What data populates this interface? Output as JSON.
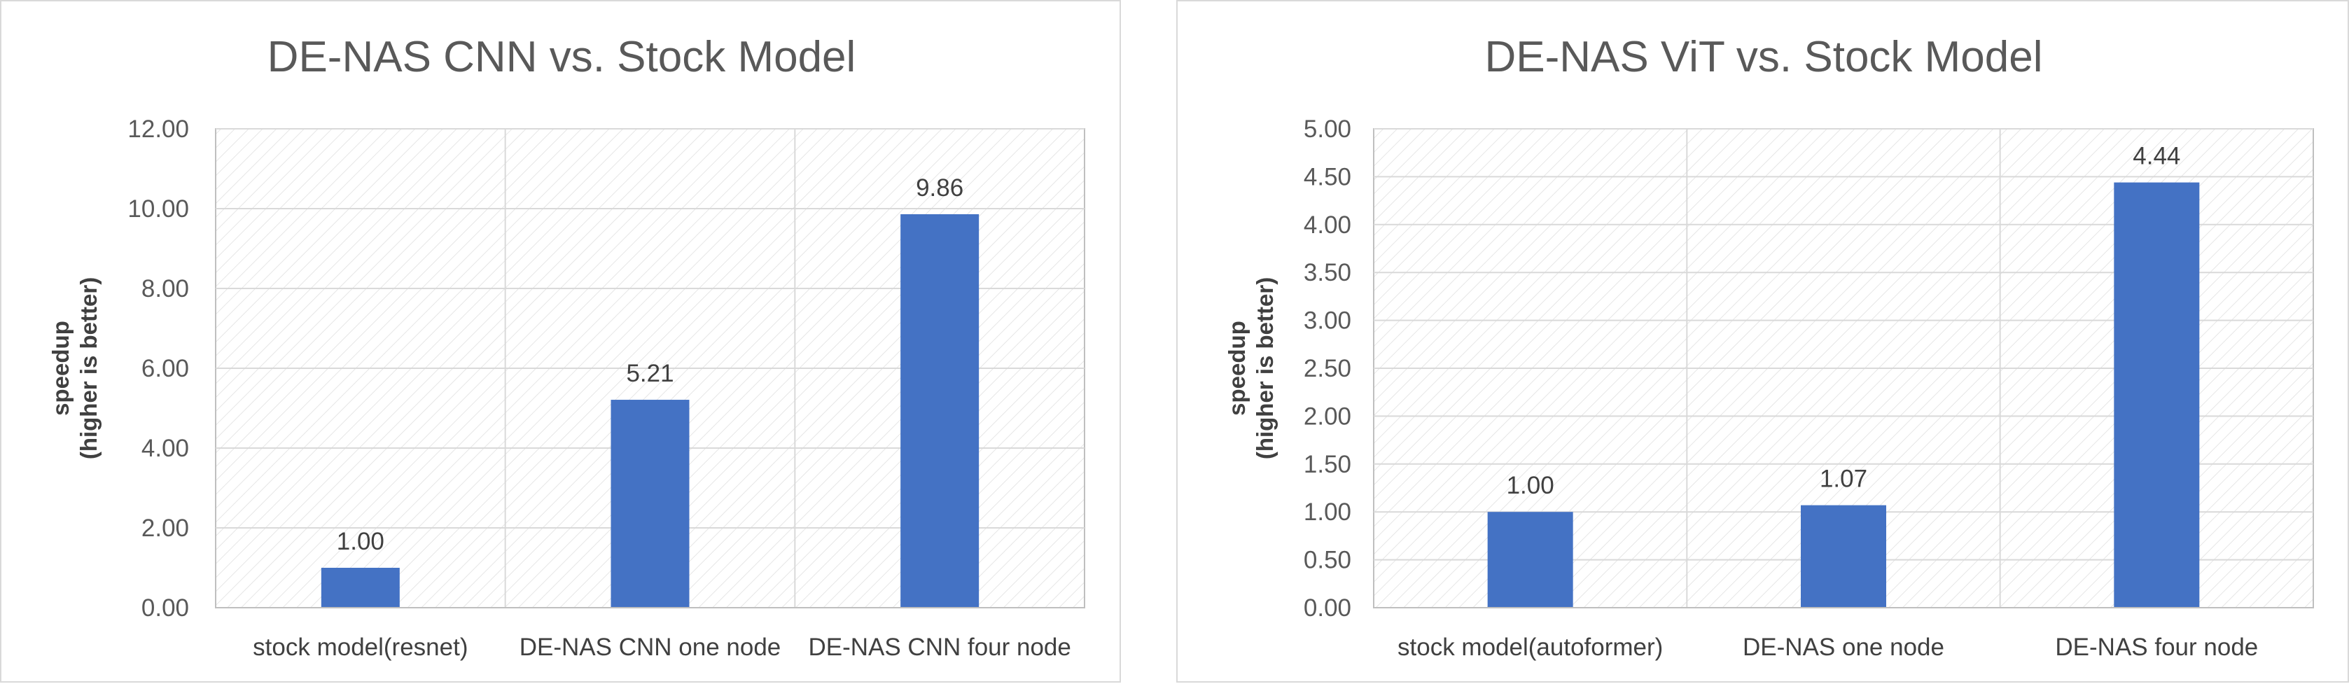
{
  "chart_data": [
    {
      "type": "bar",
      "title": "DE-NAS CNN vs. Stock Model",
      "xlabel": "",
      "ylabel": [
        "speedup",
        "(higher is better)"
      ],
      "categories": [
        "stock model(resnet)",
        "DE-NAS CNN one node",
        "DE-NAS CNN four node"
      ],
      "series": [
        {
          "values": [
            1.0,
            5.21,
            9.86
          ],
          "color": "#4472C4"
        }
      ],
      "data_labels": [
        "1.00",
        "5.21",
        "9.86"
      ],
      "ylim": [
        0,
        12
      ],
      "yticks": [
        "0.00",
        "2.00",
        "4.00",
        "6.00",
        "8.00",
        "10.00",
        "12.00"
      ],
      "grid": true,
      "legend": "none"
    },
    {
      "type": "bar",
      "title": "DE-NAS ViT vs. Stock Model",
      "xlabel": "",
      "ylabel": [
        "speedup",
        "(higher is better)"
      ],
      "categories": [
        "stock model(autoformer)",
        "DE-NAS one node",
        "DE-NAS four node"
      ],
      "series": [
        {
          "values": [
            1.0,
            1.07,
            4.44
          ],
          "color": "#4472C4"
        }
      ],
      "data_labels": [
        "1.00",
        "1.07",
        "4.44"
      ],
      "ylim": [
        0,
        5
      ],
      "yticks": [
        "0.00",
        "0.50",
        "1.00",
        "1.50",
        "2.00",
        "2.50",
        "3.00",
        "3.50",
        "4.00",
        "4.50",
        "5.00"
      ],
      "grid": true,
      "legend": "none"
    }
  ]
}
